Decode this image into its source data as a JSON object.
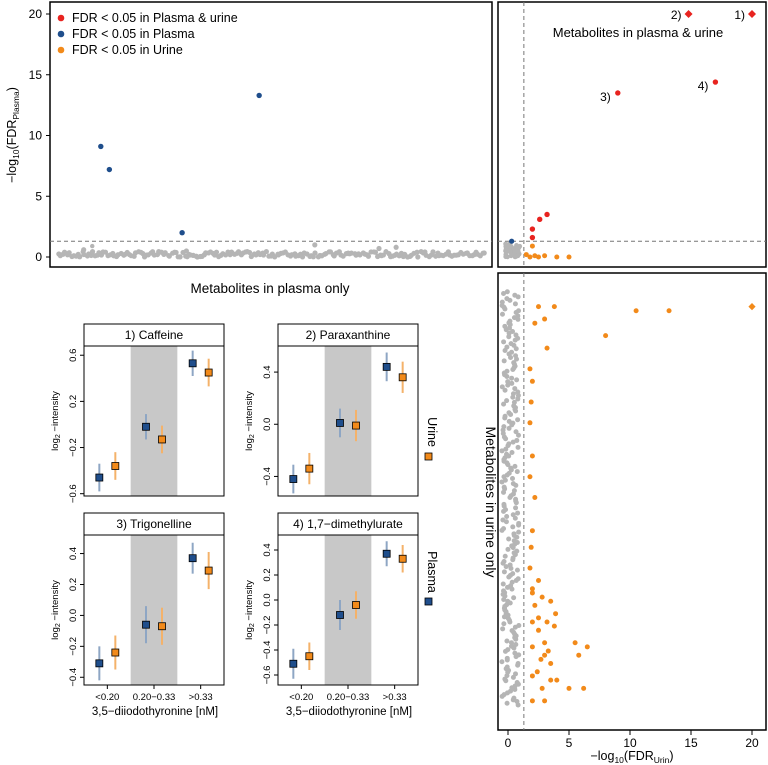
{
  "colors": {
    "both": "#e8231f",
    "plasma": "#1f4e8c",
    "urine": "#f28a1a",
    "grey": "#b5b5b5",
    "shade": "#c8c8c8"
  },
  "legend": {
    "both": "FDR < 0.05 in Plasma & urine",
    "plasma": "FDR < 0.05 in Plasma",
    "urine": "FDR < 0.05 in Urine"
  },
  "labels": {
    "plasma_only": "Metabolites in plasma only",
    "both": "Metabolites in plasma & urine",
    "urine_only": "Metabolites in urine only",
    "y_main": "−log",
    "y_main_sub": "10",
    "y_main_rest": "(FDR",
    "y_main_sub2": "Plasma",
    "y_main_end": ")",
    "x_main": "−log",
    "x_main_sub": "10",
    "x_main_rest": "(FDR",
    "x_main_sub2": "Urin",
    "x_main_end": ")",
    "small_ylabel": "log",
    "small_ylabel_sub": "2",
    "small_ylabel_rest": " −intensity",
    "small_xlabel": "3,5−diiodothyronine [nM]",
    "legend_urine": "Urine",
    "legend_plasma": "Plasma"
  },
  "chart_data": [
    {
      "type": "scatter",
      "name": "plasma-only",
      "xlim": [
        0,
        100
      ],
      "ylim": [
        -0.5,
        20.5
      ],
      "yticks": [
        0,
        5,
        10,
        15,
        20
      ],
      "ylabel": "−log10(FDR Plasma)",
      "series": [
        {
          "name": "FDR < 0.05 in Plasma",
          "points": [
            [
              10,
              9.1
            ],
            [
              12,
              7.2
            ],
            [
              29,
              2.0
            ],
            [
              47,
              13.3
            ]
          ]
        },
        {
          "name": "FDR < 0.05 in Plasma (small)",
          "points": [
            [
              8,
              0.9
            ]
          ]
        }
      ],
      "grey_band": {
        "n": 200,
        "y_range": [
          0,
          0.45
        ]
      },
      "grey_extra": [
        [
          6,
          0.6
        ],
        [
          30,
          0.5
        ],
        [
          60,
          1.0
        ],
        [
          75,
          0.7
        ],
        [
          79,
          0.8
        ]
      ],
      "hline": 1.3
    },
    {
      "type": "scatter",
      "name": "plasma-and-urine",
      "xlim": [
        -1,
        21
      ],
      "ylim": [
        -0.5,
        20.5
      ],
      "hline": 1.3,
      "vline": 1.3,
      "series": [
        {
          "name": "FDR < 0.05 in Plasma & urine",
          "points": [
            [
              2.0,
              1.6
            ],
            [
              2.0,
              2.3
            ],
            [
              2.6,
              3.1
            ],
            [
              3.2,
              3.5
            ],
            [
              9.0,
              13.5
            ],
            [
              17.0,
              14.4
            ]
          ]
        },
        {
          "name": "FDR < 0.05 in Plasma & urine (diamond)",
          "points": [
            [
              14.8,
              20.0
            ],
            [
              20.0,
              20.0
            ]
          ]
        },
        {
          "name": "FDR < 0.05 in Plasma",
          "points": [
            [
              0.3,
              1.3
            ]
          ]
        },
        {
          "name": "FDR < 0.05 in Urine",
          "points": [
            [
              1.5,
              0.2
            ],
            [
              1.8,
              0.0
            ],
            [
              2.0,
              0.9
            ],
            [
              2.2,
              0.1
            ],
            [
              2.5,
              0.0
            ],
            [
              3.0,
              0.1
            ],
            [
              4.0,
              0.0
            ],
            [
              5.0,
              0.0
            ]
          ]
        }
      ],
      "annotations": [
        {
          "text": "1)",
          "x": 20.0,
          "y": 20.0
        },
        {
          "text": "2)",
          "x": 14.8,
          "y": 20.0
        },
        {
          "text": "3)",
          "x": 9.0,
          "y": 13.5
        },
        {
          "text": "4)",
          "x": 17.0,
          "y": 14.4
        }
      ]
    },
    {
      "type": "scatter",
      "name": "urine-only",
      "xlim": [
        -1,
        21
      ],
      "xticks": [
        0,
        5,
        10,
        15,
        20
      ],
      "xlabel": "−log10(FDR Urin)",
      "vline": 1.3,
      "series": [
        {
          "name": "FDR < 0.05 in Urine",
          "points": [
            [
              2.5,
              0.96
            ],
            [
              3.8,
              0.96
            ],
            [
              10.5,
              0.95
            ],
            [
              13.2,
              0.95
            ],
            [
              3.0,
              0.93
            ],
            [
              2.2,
              0.92
            ],
            [
              8.0,
              0.89
            ],
            [
              3.2,
              0.86
            ],
            [
              1.8,
              0.81
            ],
            [
              2.0,
              0.78
            ],
            [
              1.9,
              0.73
            ],
            [
              1.8,
              0.68
            ],
            [
              2.0,
              0.6
            ],
            [
              1.8,
              0.55
            ],
            [
              2.2,
              0.5
            ],
            [
              2.0,
              0.42
            ],
            [
              1.9,
              0.38
            ],
            [
              1.8,
              0.33
            ],
            [
              2.5,
              0.3
            ],
            [
              2.0,
              0.28
            ],
            [
              2.0,
              0.27
            ],
            [
              2.8,
              0.26
            ],
            [
              3.5,
              0.25
            ],
            [
              2.2,
              0.24
            ],
            [
              3.9,
              0.22
            ],
            [
              2.5,
              0.21
            ],
            [
              2.0,
              0.2
            ],
            [
              3.2,
              0.2
            ],
            [
              3.8,
              0.19
            ],
            [
              2.5,
              0.18
            ],
            [
              3.0,
              0.15
            ],
            [
              2.0,
              0.14
            ],
            [
              3.3,
              0.13
            ],
            [
              5.5,
              0.15
            ],
            [
              6.5,
              0.14
            ],
            [
              3.0,
              0.12
            ],
            [
              2.7,
              0.11
            ],
            [
              5.8,
              0.12
            ],
            [
              3.5,
              0.1
            ],
            [
              2.4,
              0.08
            ],
            [
              2.0,
              0.07
            ],
            [
              4.0,
              0.06
            ],
            [
              3.5,
              0.06
            ],
            [
              2.8,
              0.04
            ],
            [
              5.0,
              0.04
            ],
            [
              6.2,
              0.04
            ],
            [
              2.0,
              0.01
            ],
            [
              3.0,
              0.01
            ]
          ]
        },
        {
          "name": "FDR < 0.05 in Urine (diamond)",
          "points": [
            [
              20.0,
              0.96
            ]
          ]
        }
      ],
      "grey_column": {
        "n": 120,
        "x_range": [
          -0.5,
          0.9
        ]
      }
    },
    {
      "type": "errorbar",
      "name": "caffeine",
      "title": "1) Caffeine",
      "categories": [
        "<0.20",
        "0.20−0.33",
        ">0.33"
      ],
      "ylim": [
        -0.62,
        0.68
      ],
      "yticks": [
        -0.6,
        -0.2,
        0.2,
        0.6
      ],
      "yticklabels": [
        "−0.6",
        "−0.2",
        "0.2",
        "0.6"
      ],
      "series": [
        {
          "name": "Plasma",
          "values": [
            -0.46,
            -0.02,
            0.53
          ],
          "err": [
            0.12,
            0.11,
            0.11
          ]
        },
        {
          "name": "Urine",
          "values": [
            -0.36,
            -0.13,
            0.45
          ],
          "err": [
            0.12,
            0.12,
            0.12
          ]
        }
      ]
    },
    {
      "type": "errorbar",
      "name": "paraxanthine",
      "title": "2) Paraxanthine",
      "categories": [
        "<0.20",
        "0.20−0.33",
        ">0.33"
      ],
      "ylim": [
        -0.55,
        0.6
      ],
      "yticks": [
        -0.4,
        0.0,
        0.4
      ],
      "yticklabels": [
        "−0.4",
        "0.0",
        "0.4"
      ],
      "series": [
        {
          "name": "Plasma",
          "values": [
            -0.42,
            0.01,
            0.44
          ],
          "err": [
            0.11,
            0.11,
            0.11
          ]
        },
        {
          "name": "Urine",
          "values": [
            -0.34,
            -0.01,
            0.36
          ],
          "err": [
            0.12,
            0.12,
            0.12
          ]
        }
      ]
    },
    {
      "type": "errorbar",
      "name": "trigonelline",
      "title": "3) Trigonelline",
      "categories": [
        "<0.20",
        "0.20−0.33",
        ">0.33"
      ],
      "ylim": [
        -0.45,
        0.52
      ],
      "yticks": [
        -0.4,
        -0.2,
        0.0,
        0.2,
        0.4
      ],
      "yticklabels": [
        "−0.4",
        "−0.2",
        "0.0",
        "0.2",
        "0.4"
      ],
      "series": [
        {
          "name": "Plasma",
          "values": [
            -0.31,
            -0.06,
            0.37
          ],
          "err": [
            0.11,
            0.12,
            0.1
          ]
        },
        {
          "name": "Urine",
          "values": [
            -0.24,
            -0.07,
            0.29
          ],
          "err": [
            0.11,
            0.12,
            0.12
          ]
        }
      ]
    },
    {
      "type": "errorbar",
      "name": "dimethylurate",
      "title": "4) 1,7−dimethylurate",
      "categories": [
        "<0.20",
        "0.20−0.33",
        ">0.33"
      ],
      "ylim": [
        -0.68,
        0.52
      ],
      "yticks": [
        -0.6,
        -0.4,
        -0.2,
        0.0,
        0.2,
        0.4
      ],
      "yticklabels": [
        "−0.6",
        "−0.4",
        "−0.2",
        "0.0",
        "0.2",
        "0.4"
      ],
      "series": [
        {
          "name": "Plasma",
          "values": [
            -0.51,
            -0.12,
            0.37
          ],
          "err": [
            0.12,
            0.12,
            0.1
          ]
        },
        {
          "name": "Urine",
          "values": [
            -0.45,
            -0.04,
            0.33
          ],
          "err": [
            0.11,
            0.11,
            0.11
          ]
        }
      ]
    }
  ]
}
